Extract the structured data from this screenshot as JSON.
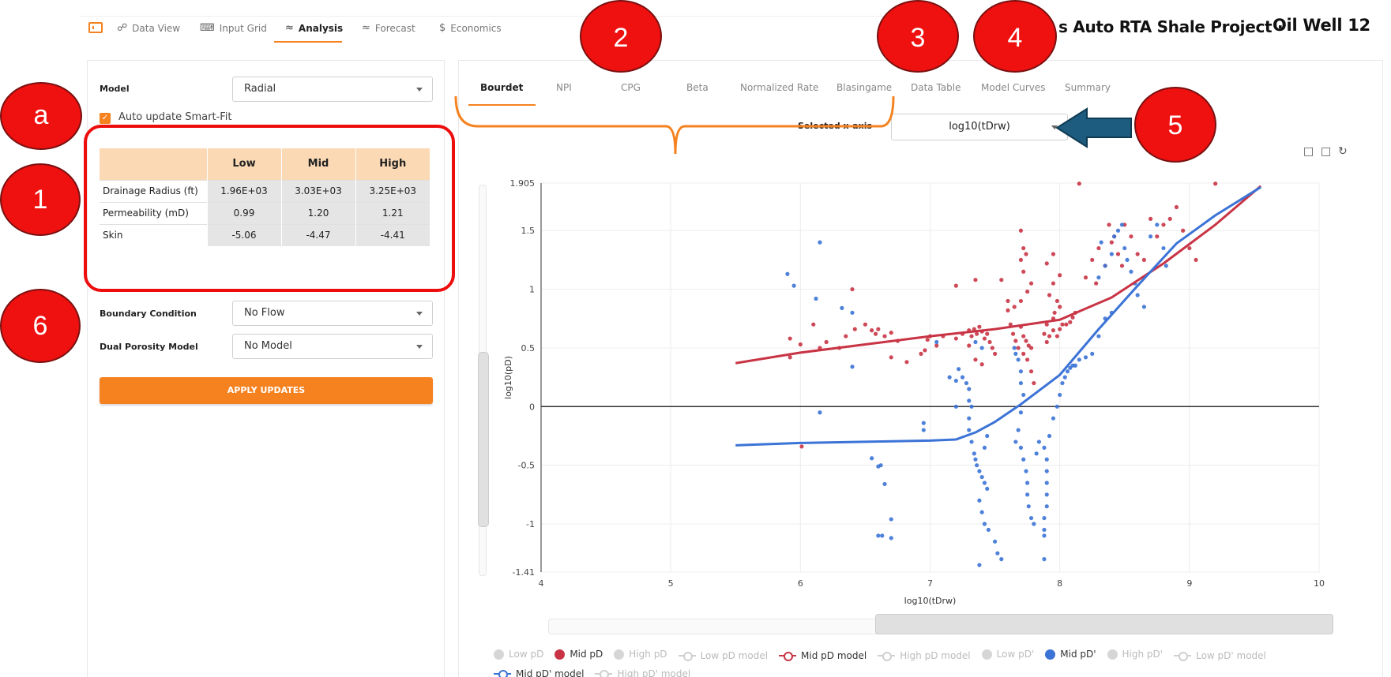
{
  "nav": {
    "tabs": [
      {
        "label": "Data View",
        "icon": "nodes-icon"
      },
      {
        "label": "Input Grid",
        "icon": "keyboard-icon"
      },
      {
        "label": "Analysis",
        "icon": "wave-icon"
      },
      {
        "label": "Forecast",
        "icon": "wave-icon"
      },
      {
        "label": "Economics",
        "icon": "dollar-icon"
      }
    ],
    "project_title": "s Auto RTA Shale Project ·",
    "well_title": "Oil Well 12"
  },
  "left": {
    "model_label": "Model",
    "model_value": "Radial",
    "auto_update_label": "Auto update Smart-Fit",
    "table": {
      "headers": [
        "Low",
        "Mid",
        "High"
      ],
      "rows": [
        {
          "label": "Drainage Radius (ft)",
          "values": [
            "1.96E+03",
            "3.03E+03",
            "3.25E+03"
          ]
        },
        {
          "label": "Permeability (mD)",
          "values": [
            "0.99",
            "1.20",
            "1.21"
          ]
        },
        {
          "label": "Skin",
          "values": [
            "-5.06",
            "-4.47",
            "-4.41"
          ]
        }
      ]
    },
    "boundary_label": "Boundary Condition",
    "boundary_value": "No Flow",
    "dual_label": "Dual Porosity Model",
    "dual_value": "No Model",
    "apply_label": "APPLY UPDATES"
  },
  "chart_tabs": [
    "Bourdet",
    "NPI",
    "CPG",
    "Beta",
    "Normalized Rate",
    "Blasingame",
    "Data Table",
    "Model Curves",
    "Summary"
  ],
  "xaxis_select": {
    "label": "Selected x-axis",
    "value": "log10(tDrw)"
  },
  "annotations": [
    "a",
    "1",
    "6",
    "2",
    "3",
    "4",
    "5"
  ],
  "colors": {
    "accent": "#f5821f",
    "mid_pd": "#d13a4a",
    "mid_pdprime": "#3b73d6",
    "annotation": "#ef1010"
  },
  "legend": [
    {
      "label": "Low pD",
      "kind": "dot",
      "on": false
    },
    {
      "label": "Mid pD",
      "kind": "dot",
      "on": true,
      "color": "#c93445"
    },
    {
      "label": "High pD",
      "kind": "dot",
      "on": false
    },
    {
      "label": "Low pD  model",
      "kind": "line",
      "on": false
    },
    {
      "label": "Mid pD  model",
      "kind": "line",
      "on": true,
      "color": "#c93445"
    },
    {
      "label": "High pD  model",
      "kind": "line",
      "on": false
    },
    {
      "label": "Low pD'",
      "kind": "dot",
      "on": false
    },
    {
      "label": "Mid pD'",
      "kind": "dot",
      "on": true,
      "color": "#3b73d6"
    },
    {
      "label": "High pD'",
      "kind": "dot",
      "on": false
    },
    {
      "label": "Low pD'  model",
      "kind": "line",
      "on": false
    },
    {
      "label": "Mid pD'  model",
      "kind": "line",
      "on": true,
      "color": "#3b73d6"
    },
    {
      "label": "High pD'  model",
      "kind": "line",
      "on": false
    }
  ],
  "chart_data": {
    "type": "scatter",
    "xlabel": "log10(tDrw)",
    "ylabel": "log10(pD)",
    "xlim": [
      4,
      10
    ],
    "ylim": [
      -1.41,
      1.905
    ],
    "xticks": [
      4,
      5,
      6,
      7,
      8,
      9,
      10
    ],
    "yticks": [
      -1.41,
      -1,
      -0.5,
      0,
      0.5,
      1,
      1.5,
      1.905
    ],
    "grid": true,
    "series": [
      {
        "name": "Mid pD",
        "color": "#c93445",
        "points": [
          [
            5.92,
            0.58
          ],
          [
            5.92,
            0.42
          ],
          [
            6.0,
            0.53
          ],
          [
            6.01,
            -0.34
          ],
          [
            6.1,
            0.7
          ],
          [
            6.15,
            0.5
          ],
          [
            6.2,
            0.55
          ],
          [
            6.3,
            0.5
          ],
          [
            6.35,
            0.6
          ],
          [
            6.42,
            0.66
          ],
          [
            6.5,
            0.7
          ],
          [
            6.55,
            0.65
          ],
          [
            6.58,
            0.62
          ],
          [
            6.6,
            0.66
          ],
          [
            6.65,
            0.6
          ],
          [
            6.7,
            0.63
          ],
          [
            6.75,
            0.56
          ],
          [
            6.82,
            0.38
          ],
          [
            6.4,
            1.0
          ],
          [
            6.7,
            0.42
          ],
          [
            6.93,
            0.45
          ],
          [
            6.96,
            0.48
          ],
          [
            6.98,
            0.57
          ],
          [
            7.0,
            0.6
          ],
          [
            7.05,
            0.52
          ],
          [
            7.1,
            0.6
          ],
          [
            7.2,
            0.58
          ],
          [
            7.25,
            0.62
          ],
          [
            7.3,
            0.65
          ],
          [
            7.32,
            0.6
          ],
          [
            7.34,
            0.66
          ],
          [
            7.36,
            0.62
          ],
          [
            7.38,
            0.68
          ],
          [
            7.4,
            0.64
          ],
          [
            7.42,
            0.58
          ],
          [
            7.44,
            0.62
          ],
          [
            7.46,
            0.55
          ],
          [
            7.48,
            0.5
          ],
          [
            7.5,
            0.45
          ],
          [
            7.35,
            0.4
          ],
          [
            7.4,
            0.36
          ],
          [
            7.3,
            0.52
          ],
          [
            7.2,
            1.03
          ],
          [
            7.35,
            1.08
          ],
          [
            7.55,
            1.08
          ],
          [
            7.6,
            0.82
          ],
          [
            7.62,
            0.7
          ],
          [
            7.64,
            0.62
          ],
          [
            7.66,
            0.56
          ],
          [
            7.68,
            0.5
          ],
          [
            7.7,
            0.68
          ],
          [
            7.72,
            0.6
          ],
          [
            7.74,
            0.56
          ],
          [
            7.76,
            0.52
          ],
          [
            7.78,
            0.5
          ],
          [
            7.7,
            1.5
          ],
          [
            7.72,
            1.35
          ],
          [
            7.74,
            1.3
          ],
          [
            7.7,
            1.25
          ],
          [
            7.72,
            1.15
          ],
          [
            7.75,
            0.98
          ],
          [
            7.78,
            1.05
          ],
          [
            7.6,
            0.9
          ],
          [
            7.65,
            0.85
          ],
          [
            7.7,
            0.9
          ],
          [
            7.72,
            0.45
          ],
          [
            7.75,
            0.4
          ],
          [
            7.78,
            0.3
          ],
          [
            7.8,
            0.2
          ],
          [
            7.9,
            0.55
          ],
          [
            7.92,
            0.6
          ],
          [
            7.95,
            0.65
          ],
          [
            7.98,
            0.6
          ],
          [
            8.0,
            0.66
          ],
          [
            8.02,
            0.7
          ],
          [
            8.05,
            0.7
          ],
          [
            8.08,
            0.72
          ],
          [
            8.1,
            0.76
          ],
          [
            8.12,
            0.8
          ],
          [
            7.88,
            0.62
          ],
          [
            7.9,
            0.7
          ],
          [
            7.95,
            0.75
          ],
          [
            7.96,
            0.8
          ],
          [
            8.0,
            0.85
          ],
          [
            7.92,
            0.95
          ],
          [
            7.95,
            1.05
          ],
          [
            8.0,
            1.12
          ],
          [
            7.9,
            1.22
          ],
          [
            7.95,
            1.3
          ],
          [
            7.98,
            0.9
          ],
          [
            8.15,
            1.9
          ],
          [
            8.2,
            1.1
          ],
          [
            8.25,
            1.25
          ],
          [
            8.28,
            1.05
          ],
          [
            8.3,
            1.35
          ],
          [
            8.35,
            1.2
          ],
          [
            8.38,
            1.55
          ],
          [
            8.4,
            1.4
          ],
          [
            8.42,
            1.45
          ],
          [
            8.45,
            1.3
          ],
          [
            8.48,
            1.2
          ],
          [
            8.5,
            1.55
          ],
          [
            8.55,
            1.45
          ],
          [
            8.6,
            1.3
          ],
          [
            8.65,
            1.25
          ],
          [
            8.7,
            1.6
          ],
          [
            8.75,
            1.45
          ],
          [
            8.8,
            1.55
          ],
          [
            8.85,
            1.6
          ],
          [
            8.9,
            1.7
          ],
          [
            8.95,
            1.5
          ],
          [
            9.0,
            1.35
          ],
          [
            9.05,
            1.25
          ],
          [
            9.2,
            1.9
          ]
        ]
      },
      {
        "name": "Mid pD'",
        "color": "#3b73d6",
        "points": [
          [
            5.9,
            1.13
          ],
          [
            5.95,
            1.03
          ],
          [
            6.15,
            1.4
          ],
          [
            6.12,
            0.92
          ],
          [
            6.32,
            0.84
          ],
          [
            6.4,
            0.8
          ],
          [
            6.4,
            0.34
          ],
          [
            6.15,
            -0.05
          ],
          [
            6.55,
            -0.44
          ],
          [
            6.6,
            -0.51
          ],
          [
            6.62,
            -0.5
          ],
          [
            6.65,
            -0.66
          ],
          [
            6.7,
            -0.96
          ],
          [
            6.6,
            -1.1
          ],
          [
            6.63,
            -1.1
          ],
          [
            6.7,
            -1.12
          ],
          [
            6.95,
            -0.14
          ],
          [
            6.95,
            -0.2
          ],
          [
            7.05,
            0.55
          ],
          [
            7.15,
            0.25
          ],
          [
            7.2,
            0.22
          ],
          [
            7.2,
            0.0
          ],
          [
            7.22,
            0.32
          ],
          [
            7.25,
            0.25
          ],
          [
            7.28,
            0.2
          ],
          [
            7.3,
            0.15
          ],
          [
            7.32,
            0.0
          ],
          [
            7.3,
            -0.1
          ],
          [
            7.3,
            -0.2
          ],
          [
            7.32,
            -0.3
          ],
          [
            7.34,
            -0.4
          ],
          [
            7.35,
            -0.45
          ],
          [
            7.36,
            -0.5
          ],
          [
            7.38,
            -0.55
          ],
          [
            7.4,
            -0.6
          ],
          [
            7.42,
            -0.65
          ],
          [
            7.44,
            -0.7
          ],
          [
            7.38,
            -0.8
          ],
          [
            7.4,
            -0.9
          ],
          [
            7.42,
            -1.0
          ],
          [
            7.45,
            -1.05
          ],
          [
            7.5,
            -1.15
          ],
          [
            7.52,
            -1.25
          ],
          [
            7.55,
            -1.3
          ],
          [
            7.38,
            -1.35
          ],
          [
            7.42,
            -0.35
          ],
          [
            7.44,
            -0.25
          ],
          [
            7.3,
            0.05
          ],
          [
            7.35,
            0.55
          ],
          [
            7.4,
            0.5
          ],
          [
            7.65,
            0.5
          ],
          [
            7.66,
            0.45
          ],
          [
            7.68,
            0.4
          ],
          [
            7.7,
            0.3
          ],
          [
            7.7,
            0.2
          ],
          [
            7.72,
            0.1
          ],
          [
            7.7,
            -0.05
          ],
          [
            7.68,
            -0.2
          ],
          [
            7.66,
            -0.3
          ],
          [
            7.7,
            -0.35
          ],
          [
            7.72,
            -0.45
          ],
          [
            7.74,
            -0.55
          ],
          [
            7.75,
            -0.65
          ],
          [
            7.75,
            -0.75
          ],
          [
            7.76,
            -0.85
          ],
          [
            7.78,
            -0.95
          ],
          [
            7.8,
            -1.0
          ],
          [
            7.82,
            -0.4
          ],
          [
            7.84,
            -0.3
          ],
          [
            7.88,
            -0.35
          ],
          [
            7.9,
            -0.45
          ],
          [
            7.9,
            -0.55
          ],
          [
            7.9,
            -0.65
          ],
          [
            7.9,
            -0.75
          ],
          [
            7.9,
            -0.85
          ],
          [
            7.88,
            -0.95
          ],
          [
            7.88,
            -1.05
          ],
          [
            7.88,
            -1.1
          ],
          [
            7.88,
            -1.3
          ],
          [
            7.92,
            -0.25
          ],
          [
            7.95,
            -0.1
          ],
          [
            7.98,
            0.0
          ],
          [
            8.0,
            0.1
          ],
          [
            8.02,
            0.2
          ],
          [
            8.04,
            0.25
          ],
          [
            8.06,
            0.3
          ],
          [
            8.08,
            0.33
          ],
          [
            8.1,
            0.35
          ],
          [
            8.12,
            0.35
          ],
          [
            8.15,
            0.4
          ],
          [
            8.2,
            0.42
          ],
          [
            8.25,
            0.45
          ],
          [
            8.3,
            0.6
          ],
          [
            8.35,
            0.75
          ],
          [
            8.4,
            0.8
          ],
          [
            8.42,
            1.45
          ],
          [
            8.45,
            1.5
          ],
          [
            8.48,
            1.55
          ],
          [
            8.5,
            1.35
          ],
          [
            8.52,
            1.25
          ],
          [
            8.55,
            1.15
          ],
          [
            8.58,
            1.05
          ],
          [
            8.6,
            0.95
          ],
          [
            8.65,
            0.85
          ],
          [
            8.7,
            1.45
          ],
          [
            8.75,
            1.55
          ],
          [
            8.8,
            1.35
          ],
          [
            8.82,
            1.2
          ],
          [
            8.3,
            1.1
          ],
          [
            8.35,
            1.2
          ],
          [
            8.32,
            1.4
          ],
          [
            8.4,
            1.3
          ]
        ]
      }
    ],
    "model_curves": [
      {
        "name": "Mid pD  model",
        "color": "#c93445",
        "points": [
          [
            5.5,
            0.37
          ],
          [
            6.0,
            0.46
          ],
          [
            6.5,
            0.53
          ],
          [
            7.0,
            0.6
          ],
          [
            7.5,
            0.66
          ],
          [
            8.0,
            0.74
          ],
          [
            8.4,
            0.93
          ],
          [
            8.8,
            1.22
          ],
          [
            9.2,
            1.55
          ],
          [
            9.55,
            1.88
          ]
        ]
      },
      {
        "name": "Mid pD'  model",
        "color": "#3b73d6",
        "points": [
          [
            5.5,
            -0.33
          ],
          [
            6.0,
            -0.31
          ],
          [
            6.5,
            -0.3
          ],
          [
            7.0,
            -0.29
          ],
          [
            7.2,
            -0.28
          ],
          [
            7.35,
            -0.22
          ],
          [
            7.5,
            -0.13
          ],
          [
            7.7,
            0.02
          ],
          [
            8.0,
            0.27
          ],
          [
            8.3,
            0.66
          ],
          [
            8.6,
            1.03
          ],
          [
            8.9,
            1.39
          ],
          [
            9.2,
            1.63
          ],
          [
            9.55,
            1.87
          ]
        ]
      }
    ]
  }
}
